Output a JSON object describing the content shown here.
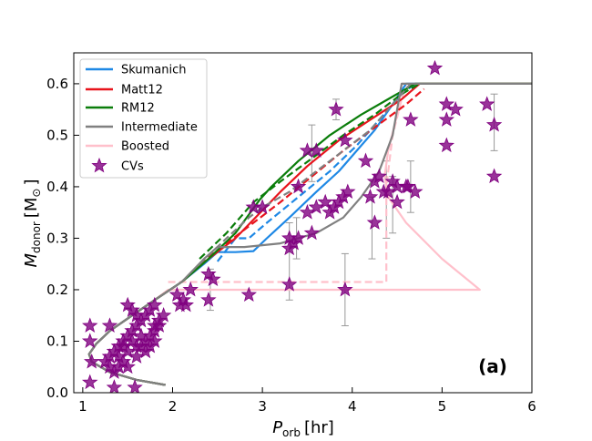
{
  "chart_data": {
    "type": "line",
    "panel_label": "(a)",
    "xlabel": "P",
    "xlabel_sub": "orb",
    "xlabel_unit": "[hr]",
    "ylabel": "M",
    "ylabel_sub": "donor",
    "ylabel_unit": "[M",
    "ylabel_unit_end": "]",
    "xlim": [
      0.9,
      6.0
    ],
    "ylim": [
      0.0,
      0.66
    ],
    "xticks": [
      1,
      2,
      3,
      4,
      5,
      6
    ],
    "yticks": [
      0.0,
      0.1,
      0.2,
      0.3,
      0.4,
      0.5,
      0.6
    ],
    "grid": false,
    "legend_position": "top-left",
    "series": [
      {
        "name": "Skumanich",
        "color": "#1e88e5",
        "solid": [
          [
            1.92,
            0.015
          ],
          [
            1.6,
            0.025
          ],
          [
            1.3,
            0.04
          ],
          [
            1.1,
            0.06
          ],
          [
            1.07,
            0.075
          ],
          [
            1.15,
            0.095
          ],
          [
            1.3,
            0.12
          ],
          [
            1.55,
            0.15
          ],
          [
            1.8,
            0.18
          ],
          [
            2.1,
            0.215
          ],
          [
            2.35,
            0.25
          ],
          [
            2.5,
            0.273
          ],
          [
            2.7,
            0.273
          ],
          [
            2.9,
            0.275
          ],
          [
            3.05,
            0.3
          ],
          [
            3.3,
            0.34
          ],
          [
            3.6,
            0.39
          ],
          [
            3.85,
            0.43
          ],
          [
            4.05,
            0.47
          ],
          [
            4.25,
            0.51
          ],
          [
            4.45,
            0.56
          ],
          [
            4.6,
            0.6
          ],
          [
            6.0,
            0.6
          ]
        ],
        "dashed": [
          [
            2.5,
            0.255
          ],
          [
            2.7,
            0.3
          ],
          [
            2.85,
            0.3
          ],
          [
            3.05,
            0.33
          ],
          [
            3.4,
            0.38
          ],
          [
            3.75,
            0.43
          ],
          [
            4.05,
            0.48
          ],
          [
            4.3,
            0.53
          ],
          [
            4.55,
            0.58
          ],
          [
            4.7,
            0.6
          ]
        ]
      },
      {
        "name": "Matt12",
        "color": "#e8141c",
        "solid": [
          [
            1.92,
            0.015
          ],
          [
            1.6,
            0.025
          ],
          [
            1.3,
            0.04
          ],
          [
            1.1,
            0.06
          ],
          [
            1.07,
            0.075
          ],
          [
            1.15,
            0.095
          ],
          [
            1.3,
            0.12
          ],
          [
            1.55,
            0.15
          ],
          [
            1.8,
            0.18
          ],
          [
            2.1,
            0.215
          ],
          [
            2.4,
            0.26
          ],
          [
            2.7,
            0.3
          ],
          [
            2.95,
            0.345
          ],
          [
            3.2,
            0.39
          ],
          [
            3.5,
            0.44
          ],
          [
            3.85,
            0.49
          ],
          [
            4.2,
            0.53
          ],
          [
            4.55,
            0.57
          ],
          [
            4.75,
            0.6
          ],
          [
            6.0,
            0.6
          ]
        ],
        "dashed": [
          [
            2.3,
            0.25
          ],
          [
            2.6,
            0.29
          ],
          [
            2.9,
            0.33
          ],
          [
            3.2,
            0.37
          ],
          [
            3.55,
            0.42
          ],
          [
            3.9,
            0.47
          ],
          [
            4.25,
            0.515
          ],
          [
            4.6,
            0.56
          ],
          [
            4.8,
            0.59
          ]
        ]
      },
      {
        "name": "RM12",
        "color": "#0a7d0a",
        "solid": [
          [
            1.92,
            0.015
          ],
          [
            1.6,
            0.025
          ],
          [
            1.3,
            0.04
          ],
          [
            1.1,
            0.06
          ],
          [
            1.07,
            0.075
          ],
          [
            1.15,
            0.095
          ],
          [
            1.3,
            0.12
          ],
          [
            1.55,
            0.15
          ],
          [
            1.8,
            0.18
          ],
          [
            2.1,
            0.215
          ],
          [
            2.4,
            0.26
          ],
          [
            2.7,
            0.31
          ],
          [
            2.97,
            0.375
          ],
          [
            3.1,
            0.4
          ],
          [
            3.4,
            0.45
          ],
          [
            3.75,
            0.5
          ],
          [
            4.1,
            0.54
          ],
          [
            4.45,
            0.575
          ],
          [
            4.7,
            0.6
          ],
          [
            6.0,
            0.6
          ]
        ],
        "dashed": [
          [
            2.3,
            0.26
          ],
          [
            2.6,
            0.31
          ],
          [
            2.9,
            0.37
          ],
          [
            3.2,
            0.41
          ],
          [
            3.55,
            0.455
          ],
          [
            3.9,
            0.5
          ],
          [
            4.25,
            0.54
          ],
          [
            4.55,
            0.58
          ],
          [
            4.75,
            0.6
          ]
        ]
      },
      {
        "name": "Intermediate",
        "color": "#808080",
        "solid": [
          [
            1.92,
            0.015
          ],
          [
            1.6,
            0.025
          ],
          [
            1.3,
            0.04
          ],
          [
            1.1,
            0.06
          ],
          [
            1.07,
            0.075
          ],
          [
            1.15,
            0.095
          ],
          [
            1.3,
            0.12
          ],
          [
            1.55,
            0.15
          ],
          [
            1.8,
            0.18
          ],
          [
            2.1,
            0.215
          ],
          [
            2.35,
            0.26
          ],
          [
            2.5,
            0.283
          ],
          [
            2.8,
            0.283
          ],
          [
            3.2,
            0.29
          ],
          [
            3.6,
            0.31
          ],
          [
            3.9,
            0.34
          ],
          [
            4.1,
            0.38
          ],
          [
            4.3,
            0.43
          ],
          [
            4.45,
            0.5
          ],
          [
            4.55,
            0.6
          ],
          [
            6.0,
            0.6
          ]
        ],
        "dashed": [
          [
            2.3,
            0.25
          ],
          [
            2.6,
            0.3
          ],
          [
            2.85,
            0.34
          ],
          [
            3.0,
            0.36
          ],
          [
            3.3,
            0.39
          ],
          [
            3.6,
            0.43
          ],
          [
            3.9,
            0.47
          ],
          [
            4.2,
            0.51
          ],
          [
            4.45,
            0.56
          ],
          [
            4.65,
            0.6
          ]
        ]
      },
      {
        "name": "Boosted",
        "color": "#ffc0cb",
        "solid": [
          [
            1.92,
            0.015
          ],
          [
            1.6,
            0.025
          ],
          [
            1.3,
            0.04
          ],
          [
            1.1,
            0.06
          ],
          [
            1.07,
            0.075
          ],
          [
            1.15,
            0.095
          ],
          [
            1.3,
            0.12
          ],
          [
            1.55,
            0.15
          ],
          [
            1.8,
            0.18
          ],
          [
            1.95,
            0.2
          ],
          [
            5.42,
            0.2
          ],
          [
            5.0,
            0.26
          ],
          [
            4.6,
            0.33
          ],
          [
            4.4,
            0.38
          ],
          [
            4.36,
            0.42
          ],
          [
            4.4,
            0.47
          ],
          [
            4.5,
            0.54
          ],
          [
            4.55,
            0.6
          ],
          [
            6.0,
            0.6
          ]
        ],
        "dashed": [
          [
            1.95,
            0.215
          ],
          [
            4.38,
            0.215
          ],
          [
            4.38,
            0.4
          ],
          [
            4.45,
            0.5
          ],
          [
            4.55,
            0.57
          ],
          [
            4.6,
            0.6
          ]
        ]
      }
    ],
    "cvs": {
      "name": "CVs",
      "color": "#800080",
      "points": [
        [
          1.08,
          0.02
        ],
        [
          1.08,
          0.13
        ],
        [
          1.1,
          0.06
        ],
        [
          1.08,
          0.1
        ],
        [
          1.3,
          0.13
        ],
        [
          1.35,
          0.01
        ],
        [
          1.58,
          0.01
        ],
        [
          1.25,
          0.06
        ],
        [
          1.3,
          0.05
        ],
        [
          1.35,
          0.08
        ],
        [
          1.4,
          0.09
        ],
        [
          1.45,
          0.1
        ],
        [
          1.5,
          0.11
        ],
        [
          1.55,
          0.12
        ],
        [
          1.6,
          0.13
        ],
        [
          1.65,
          0.14
        ],
        [
          1.7,
          0.15
        ],
        [
          1.75,
          0.16
        ],
        [
          1.8,
          0.17
        ],
        [
          1.5,
          0.17
        ],
        [
          1.55,
          0.16
        ],
        [
          1.6,
          0.15
        ],
        [
          1.65,
          0.09
        ],
        [
          1.7,
          0.1
        ],
        [
          1.75,
          0.11
        ],
        [
          1.8,
          0.12
        ],
        [
          1.85,
          0.13
        ],
        [
          1.4,
          0.07
        ],
        [
          1.45,
          0.06
        ],
        [
          1.5,
          0.05
        ],
        [
          1.35,
          0.04
        ],
        [
          1.4,
          0.05
        ],
        [
          1.5,
          0.08
        ],
        [
          1.6,
          0.09
        ],
        [
          1.7,
          0.08
        ],
        [
          1.8,
          0.1
        ],
        [
          1.9,
          0.15
        ],
        [
          1.85,
          0.14
        ],
        [
          1.3,
          0.07
        ],
        [
          1.45,
          0.09
        ],
        [
          1.55,
          0.1
        ],
        [
          1.6,
          0.07
        ],
        [
          1.65,
          0.11
        ],
        [
          1.75,
          0.09
        ],
        [
          1.8,
          0.13
        ],
        [
          2.05,
          0.19
        ],
        [
          2.08,
          0.17
        ],
        [
          2.12,
          0.18
        ],
        [
          2.15,
          0.17
        ],
        [
          2.2,
          0.2
        ],
        [
          2.4,
          0.23
        ],
        [
          2.45,
          0.22
        ],
        [
          2.4,
          0.18
        ],
        [
          2.85,
          0.19
        ],
        [
          2.9,
          0.36
        ],
        [
          3.0,
          0.36
        ],
        [
          3.3,
          0.3
        ],
        [
          3.35,
          0.29
        ],
        [
          3.4,
          0.3
        ],
        [
          3.5,
          0.35
        ],
        [
          3.55,
          0.31
        ],
        [
          3.6,
          0.36
        ],
        [
          3.4,
          0.4
        ],
        [
          3.5,
          0.47
        ],
        [
          3.6,
          0.47
        ],
        [
          3.7,
          0.37
        ],
        [
          3.75,
          0.35
        ],
        [
          3.8,
          0.36
        ],
        [
          3.85,
          0.37
        ],
        [
          3.9,
          0.38
        ],
        [
          3.95,
          0.39
        ],
        [
          3.82,
          0.55
        ],
        [
          3.92,
          0.49
        ],
        [
          4.15,
          0.45
        ],
        [
          4.2,
          0.38
        ],
        [
          4.25,
          0.41
        ],
        [
          4.3,
          0.42
        ],
        [
          4.35,
          0.39
        ],
        [
          4.4,
          0.39
        ],
        [
          4.45,
          0.41
        ],
        [
          4.5,
          0.37
        ],
        [
          4.25,
          0.33
        ],
        [
          4.6,
          0.4
        ],
        [
          4.65,
          0.53
        ],
        [
          4.7,
          0.39
        ],
        [
          4.92,
          0.63
        ],
        [
          5.05,
          0.56
        ],
        [
          5.05,
          0.53
        ],
        [
          5.05,
          0.48
        ],
        [
          5.15,
          0.55
        ],
        [
          5.5,
          0.56
        ],
        [
          5.58,
          0.52
        ],
        [
          5.58,
          0.42
        ],
        [
          3.3,
          0.21
        ],
        [
          3.3,
          0.28
        ],
        [
          3.92,
          0.2
        ],
        [
          4.5,
          0.4
        ],
        [
          4.62,
          0.4
        ]
      ],
      "error_bars": [
        [
          3.3,
          0.18,
          0.33
        ],
        [
          3.92,
          0.13,
          0.27
        ],
        [
          4.38,
          0.3,
          0.45
        ],
        [
          4.45,
          0.31,
          0.42
        ],
        [
          4.65,
          0.35,
          0.45
        ],
        [
          5.58,
          0.47,
          0.58
        ],
        [
          3.82,
          0.53,
          0.57
        ],
        [
          3.55,
          0.41,
          0.52
        ],
        [
          4.22,
          0.26,
          0.38
        ],
        [
          2.42,
          0.16,
          0.24
        ],
        [
          3.38,
          0.26,
          0.34
        ]
      ]
    }
  }
}
